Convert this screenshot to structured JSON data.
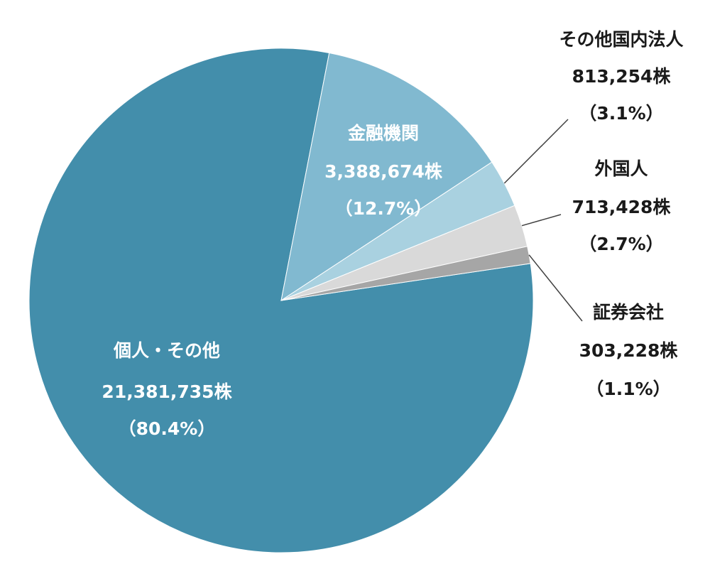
{
  "chart_data": {
    "type": "pie",
    "slices": [
      {
        "label": "個人・その他",
        "shares": "21,381,735株",
        "percent": "（80.4%）",
        "value": 80.4,
        "color": "#438eab"
      },
      {
        "label": "金融機関",
        "shares": "3,388,674株",
        "percent": "（12.7%）",
        "value": 12.7,
        "color": "#81b9d0"
      },
      {
        "label": "その他国内法人",
        "shares": "813,254株",
        "percent": "（3.1%）",
        "value": 3.1,
        "color": "#a9d1e0"
      },
      {
        "label": "外国人",
        "shares": "713,428株",
        "percent": "（2.7%）",
        "value": 2.7,
        "color": "#d9d9d9"
      },
      {
        "label": "証券会社",
        "shares": "303,228株",
        "percent": "（1.1%）",
        "value": 1.1,
        "color": "#a6a6a6"
      }
    ]
  }
}
